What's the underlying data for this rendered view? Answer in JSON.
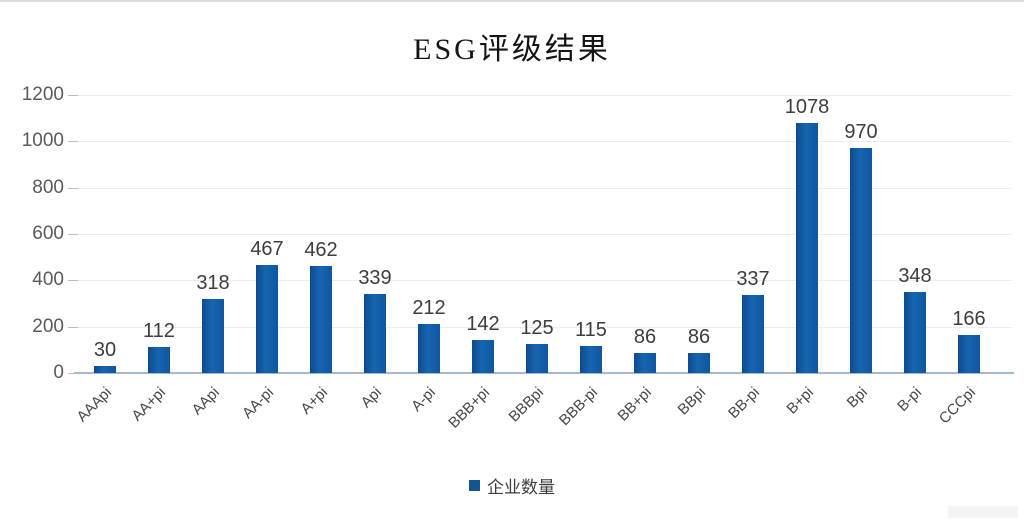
{
  "title": "ESG评级结果",
  "legend": {
    "label": "企业数量"
  },
  "colors": {
    "bar": "#1159a0",
    "bar_gradient_dark": "#0d4a8f",
    "bar_gradient_light": "#1765b0",
    "grid": "#ececec",
    "axis_line": "#a3b8cc",
    "title_text": "#141414",
    "value_label_text": "#3d3d3d",
    "y_label_text": "#5a5a5a",
    "x_label_text": "#474747"
  },
  "chart_data": {
    "type": "bar",
    "title": "ESG评级结果",
    "series_name": "企业数量",
    "categories": [
      "AAApi",
      "AA+pi",
      "AApi",
      "AA-pi",
      "A+pi",
      "Api",
      "A-pi",
      "BBB+pi",
      "BBBpi",
      "BBB-pi",
      "BB+pi",
      "BBpi",
      "BB-pi",
      "B+pi",
      "Bpi",
      "B-pi",
      "CCCpi"
    ],
    "values": [
      30,
      112,
      318,
      467,
      462,
      339,
      212,
      142,
      125,
      115,
      86,
      86,
      337,
      1078,
      970,
      348,
      166
    ],
    "xlabel": "",
    "ylabel": "",
    "ylim": [
      0,
      1200
    ],
    "yticks": [
      0,
      200,
      400,
      600,
      800,
      1000,
      1200
    ],
    "grid": true,
    "legend_position": "bottom",
    "data_labels": true,
    "x_label_rotation_deg": -45
  }
}
